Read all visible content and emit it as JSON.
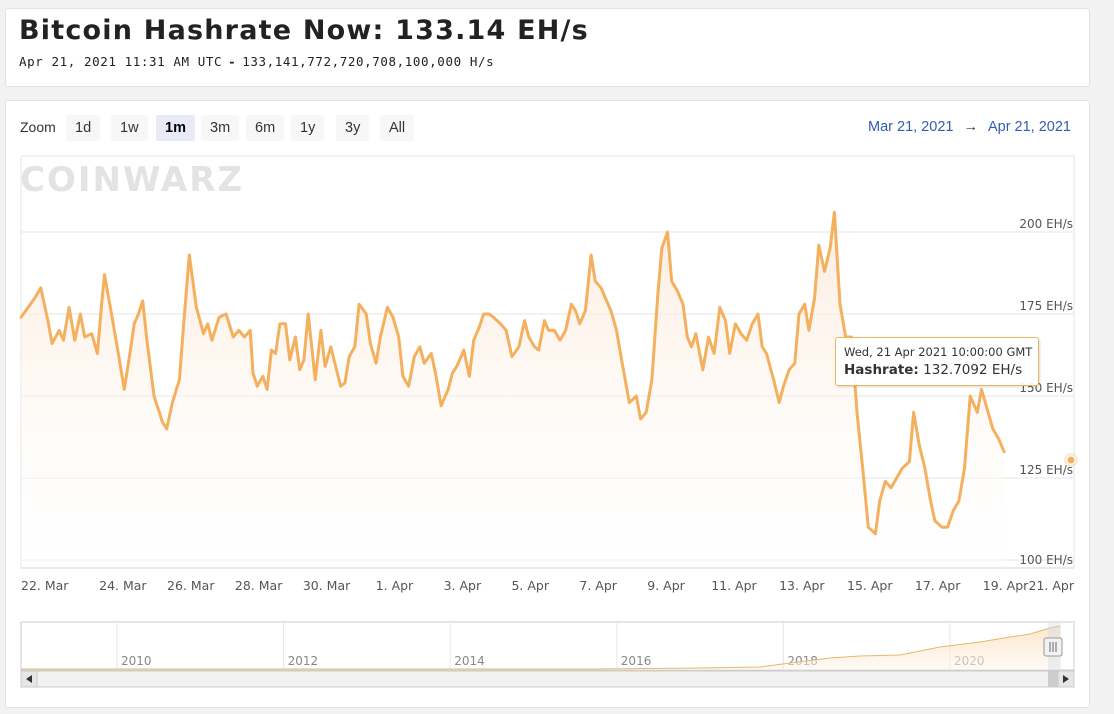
{
  "header": {
    "title": "Bitcoin Hashrate Now: 133.14 EH/s",
    "timestamp": "Apr 21, 2021 11:31 AM UTC",
    "separator": "-",
    "hashrate_full": "133,141,772,720,708,100,000 H/s"
  },
  "toolbar": {
    "zoom_label": "Zoom",
    "zoom_buttons": [
      "1d",
      "1w",
      "1m",
      "3m",
      "6m",
      "1y",
      "3y",
      "All"
    ],
    "selected_zoom": "1m",
    "range_from": "Mar 21, 2021",
    "range_arrow": "→",
    "range_to": "Apr 21, 2021"
  },
  "watermark": "COINWARZ",
  "tooltip": {
    "date": "Wed, 21 Apr 2021 10:00:00 GMT",
    "label": "Hashrate:",
    "value": "132.7092 EH/s"
  },
  "navigator": {
    "year_labels": [
      "2010",
      "2012",
      "2014",
      "2016",
      "2018",
      "2020"
    ]
  },
  "colors": {
    "series": "#f4b05e",
    "fill": "#fdf3ea",
    "accent_blue": "#335cad",
    "grid": "#e6e6e6"
  },
  "chart_data": {
    "type": "area",
    "title": "",
    "xlabel": "",
    "ylabel": "",
    "ylim": [
      100,
      210
    ],
    "y_unit": "EH/s",
    "y_ticks": [
      "100 EH/s",
      "125 EH/s",
      "150 EH/s",
      "175 EH/s",
      "200 EH/s"
    ],
    "x_ticks": [
      "22. Mar",
      "24. Mar",
      "26. Mar",
      "28. Mar",
      "30. Mar",
      "1. Apr",
      "3. Apr",
      "5. Apr",
      "7. Apr",
      "9. Apr",
      "11. Apr",
      "13. Apr",
      "15. Apr",
      "17. Apr",
      "19. Apr",
      "21. Apr"
    ],
    "x_start_date": "Mar 21, 2021 00:00",
    "series": [
      {
        "name": "Hashrate",
        "points": [
          [
            "Mar 21, 2021 00:00",
            174
          ],
          [
            "Mar 21, 2021 10:00",
            180
          ],
          [
            "Mar 21, 2021 14:00",
            183
          ],
          [
            "Mar 21, 2021 19:00",
            173
          ],
          [
            "Mar 21, 2021 22:00",
            166
          ],
          [
            "Mar 22, 2021 03:00",
            170
          ],
          [
            "Mar 22, 2021 06:00",
            167
          ],
          [
            "Mar 22, 2021 10:00",
            177
          ],
          [
            "Mar 22, 2021 14:00",
            167
          ],
          [
            "Mar 22, 2021 18:00",
            175
          ],
          [
            "Mar 22, 2021 21:00",
            168
          ],
          [
            "Mar 23, 2021 02:00",
            169
          ],
          [
            "Mar 23, 2021 06:00",
            163
          ],
          [
            "Mar 23, 2021 09:00",
            178
          ],
          [
            "Mar 23, 2021 11:00",
            187
          ],
          [
            "Mar 23, 2021 16:00",
            175
          ],
          [
            "Mar 23, 2021 20:00",
            165
          ],
          [
            "Mar 24, 2021 01:00",
            152
          ],
          [
            "Mar 24, 2021 05:00",
            163
          ],
          [
            "Mar 24, 2021 08:00",
            172
          ],
          [
            "Mar 24, 2021 11:00",
            175
          ],
          [
            "Mar 24, 2021 14:00",
            179
          ],
          [
            "Mar 24, 2021 17:00",
            167
          ],
          [
            "Mar 24, 2021 22:00",
            150
          ],
          [
            "Mar 25, 2021 04:00",
            142
          ],
          [
            "Mar 25, 2021 07:00",
            140
          ],
          [
            "Mar 25, 2021 11:00",
            148
          ],
          [
            "Mar 25, 2021 16:00",
            155
          ],
          [
            "Mar 25, 2021 19:00",
            172
          ],
          [
            "Mar 25, 2021 23:00",
            193
          ],
          [
            "Mar 26, 2021 04:00",
            177
          ],
          [
            "Mar 26, 2021 09:00",
            169
          ],
          [
            "Mar 26, 2021 12:00",
            172
          ],
          [
            "Mar 26, 2021 15:00",
            167
          ],
          [
            "Mar 26, 2021 20:00",
            174
          ],
          [
            "Mar 27, 2021 01:00",
            175
          ],
          [
            "Mar 27, 2021 06:00",
            168
          ],
          [
            "Mar 27, 2021 10:00",
            170
          ],
          [
            "Mar 27, 2021 14:00",
            168
          ],
          [
            "Mar 27, 2021 18:00",
            170
          ],
          [
            "Mar 27, 2021 20:00",
            157
          ],
          [
            "Mar 27, 2021 23:00",
            153
          ],
          [
            "Mar 28, 2021 03:00",
            156
          ],
          [
            "Mar 28, 2021 06:00",
            152
          ],
          [
            "Mar 28, 2021 09:00",
            164
          ],
          [
            "Mar 28, 2021 12:00",
            163
          ],
          [
            "Mar 28, 2021 15:00",
            172
          ],
          [
            "Mar 28, 2021 19:00",
            172
          ],
          [
            "Mar 28, 2021 22:00",
            161
          ],
          [
            "Mar 29, 2021 02:00",
            168
          ],
          [
            "Mar 29, 2021 05:00",
            158
          ],
          [
            "Mar 29, 2021 08:00",
            161
          ],
          [
            "Mar 29, 2021 11:00",
            175
          ],
          [
            "Mar 29, 2021 16:00",
            155
          ],
          [
            "Mar 29, 2021 20:00",
            170
          ],
          [
            "Mar 29, 2021 23:00",
            159
          ],
          [
            "Mar 30, 2021 03:00",
            165
          ],
          [
            "Mar 30, 2021 07:00",
            158
          ],
          [
            "Mar 30, 2021 10:00",
            153
          ],
          [
            "Mar 30, 2021 13:00",
            154
          ],
          [
            "Mar 30, 2021 16:00",
            162
          ],
          [
            "Mar 30, 2021 20:00",
            165
          ],
          [
            "Mar 30, 2021 23:00",
            178
          ],
          [
            "Mar 31, 2021 04:00",
            175
          ],
          [
            "Mar 31, 2021 07:00",
            166
          ],
          [
            "Mar 31, 2021 11:00",
            160
          ],
          [
            "Mar 31, 2021 14:00",
            168
          ],
          [
            "Mar 31, 2021 19:00",
            177
          ],
          [
            "Mar 31, 2021 23:00",
            174
          ],
          [
            "Apr 1, 2021 03:00",
            168
          ],
          [
            "Apr 1, 2021 06:00",
            156
          ],
          [
            "Apr 1, 2021 10:00",
            153
          ],
          [
            "Apr 1, 2021 14:00",
            162
          ],
          [
            "Apr 1, 2021 18:00",
            165
          ],
          [
            "Apr 1, 2021 21:00",
            160
          ],
          [
            "Apr 2, 2021 02:00",
            163
          ],
          [
            "Apr 2, 2021 05:00",
            157
          ],
          [
            "Apr 2, 2021 09:00",
            147
          ],
          [
            "Apr 2, 2021 14:00",
            152
          ],
          [
            "Apr 2, 2021 17:00",
            157
          ],
          [
            "Apr 2, 2021 20:00",
            159
          ],
          [
            "Apr 3, 2021 01:00",
            164
          ],
          [
            "Apr 3, 2021 05:00",
            156
          ],
          [
            "Apr 3, 2021 08:00",
            167
          ],
          [
            "Apr 3, 2021 12:00",
            171
          ],
          [
            "Apr 3, 2021 15:00",
            175
          ],
          [
            "Apr 3, 2021 19:00",
            175
          ],
          [
            "Apr 3, 2021 22:00",
            174
          ],
          [
            "Apr 4, 2021 03:00",
            172
          ],
          [
            "Apr 4, 2021 07:00",
            170
          ],
          [
            "Apr 4, 2021 11:00",
            162
          ],
          [
            "Apr 4, 2021 16:00",
            165
          ],
          [
            "Apr 4, 2021 20:00",
            173
          ],
          [
            "Apr 4, 2021 23:00",
            168
          ],
          [
            "Apr 5, 2021 03:00",
            165
          ],
          [
            "Apr 5, 2021 06:00",
            164
          ],
          [
            "Apr 5, 2021 10:00",
            173
          ],
          [
            "Apr 5, 2021 13:00",
            170
          ],
          [
            "Apr 5, 2021 17:00",
            170
          ],
          [
            "Apr 5, 2021 21:00",
            167
          ],
          [
            "Apr 6, 2021 01:00",
            170
          ],
          [
            "Apr 6, 2021 05:00",
            178
          ],
          [
            "Apr 6, 2021 08:00",
            176
          ],
          [
            "Apr 6, 2021 11:00",
            172
          ],
          [
            "Apr 6, 2021 15:00",
            176
          ],
          [
            "Apr 6, 2021 19:00",
            193
          ],
          [
            "Apr 6, 2021 22:00",
            185
          ],
          [
            "Apr 7, 2021 02:00",
            183
          ],
          [
            "Apr 7, 2021 05:00",
            180
          ],
          [
            "Apr 7, 2021 09:00",
            176
          ],
          [
            "Apr 7, 2021 13:00",
            170
          ],
          [
            "Apr 7, 2021 17:00",
            160
          ],
          [
            "Apr 7, 2021 22:00",
            148
          ],
          [
            "Apr 8, 2021 03:00",
            150
          ],
          [
            "Apr 8, 2021 06:00",
            143
          ],
          [
            "Apr 8, 2021 10:00",
            145
          ],
          [
            "Apr 8, 2021 14:00",
            155
          ],
          [
            "Apr 8, 2021 18:00",
            180
          ],
          [
            "Apr 8, 2021 21:00",
            195
          ],
          [
            "Apr 9, 2021 01:00",
            200
          ],
          [
            "Apr 9, 2021 04:00",
            185
          ],
          [
            "Apr 9, 2021 08:00",
            182
          ],
          [
            "Apr 9, 2021 12:00",
            178
          ],
          [
            "Apr 9, 2021 15:00",
            168
          ],
          [
            "Apr 9, 2021 18:00",
            165
          ],
          [
            "Apr 9, 2021 21:00",
            169
          ],
          [
            "Apr 10, 2021 02:00",
            158
          ],
          [
            "Apr 10, 2021 06:00",
            168
          ],
          [
            "Apr 10, 2021 10:00",
            163
          ],
          [
            "Apr 10, 2021 14:00",
            177
          ],
          [
            "Apr 10, 2021 18:00",
            173
          ],
          [
            "Apr 10, 2021 21:00",
            163
          ],
          [
            "Apr 11, 2021 01:00",
            172
          ],
          [
            "Apr 11, 2021 05:00",
            169
          ],
          [
            "Apr 11, 2021 09:00",
            167
          ],
          [
            "Apr 11, 2021 13:00",
            172
          ],
          [
            "Apr 11, 2021 17:00",
            175
          ],
          [
            "Apr 11, 2021 20:00",
            165
          ],
          [
            "Apr 11, 2021 23:00",
            163
          ],
          [
            "Apr 12, 2021 04:00",
            155
          ],
          [
            "Apr 12, 2021 08:00",
            148
          ],
          [
            "Apr 12, 2021 11:00",
            153
          ],
          [
            "Apr 12, 2021 15:00",
            158
          ],
          [
            "Apr 12, 2021 19:00",
            160
          ],
          [
            "Apr 12, 2021 22:00",
            175
          ],
          [
            "Apr 13, 2021 02:00",
            178
          ],
          [
            "Apr 13, 2021 05:00",
            170
          ],
          [
            "Apr 13, 2021 09:00",
            180
          ],
          [
            "Apr 13, 2021 12:00",
            196
          ],
          [
            "Apr 13, 2021 16:00",
            188
          ],
          [
            "Apr 13, 2021 20:00",
            195
          ],
          [
            "Apr 13, 2021 23:00",
            206
          ],
          [
            "Apr 14, 2021 03:00",
            178
          ],
          [
            "Apr 14, 2021 07:00",
            168
          ],
          [
            "Apr 14, 2021 11:00",
            168
          ],
          [
            "Apr 14, 2021 15:00",
            145
          ],
          [
            "Apr 14, 2021 19:00",
            128
          ],
          [
            "Apr 14, 2021 23:00",
            110
          ],
          [
            "Apr 15, 2021 04:00",
            108
          ],
          [
            "Apr 15, 2021 07:00",
            118
          ],
          [
            "Apr 15, 2021 11:00",
            124
          ],
          [
            "Apr 15, 2021 15:00",
            122
          ],
          [
            "Apr 15, 2021 19:00",
            125
          ],
          [
            "Apr 15, 2021 23:00",
            128
          ],
          [
            "Apr 16, 2021 04:00",
            130
          ],
          [
            "Apr 16, 2021 07:00",
            145
          ],
          [
            "Apr 16, 2021 11:00",
            135
          ],
          [
            "Apr 16, 2021 15:00",
            128
          ],
          [
            "Apr 16, 2021 19:00",
            118
          ],
          [
            "Apr 16, 2021 22:00",
            112
          ],
          [
            "Apr 17, 2021 03:00",
            110
          ],
          [
            "Apr 17, 2021 07:00",
            110
          ],
          [
            "Apr 17, 2021 11:00",
            115
          ],
          [
            "Apr 17, 2021 15:00",
            118
          ],
          [
            "Apr 17, 2021 19:00",
            128
          ],
          [
            "Apr 17, 2021 23:00",
            150
          ],
          [
            "Apr 18, 2021 04:00",
            145
          ],
          [
            "Apr 18, 2021 07:00",
            152
          ],
          [
            "Apr 18, 2021 11:00",
            146
          ],
          [
            "Apr 18, 2021 15:00",
            140
          ],
          [
            "Apr 18, 2021 19:00",
            137
          ],
          [
            "Apr 18, 2021 23:00",
            133
          ]
        ]
      }
    ]
  }
}
